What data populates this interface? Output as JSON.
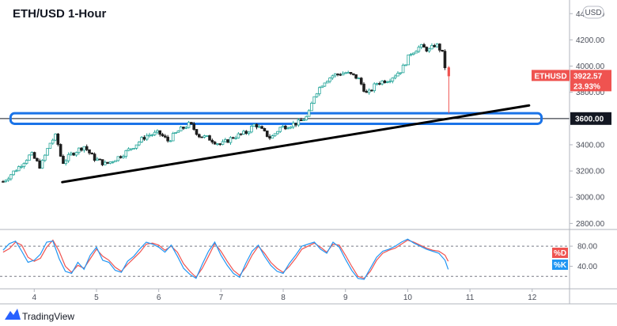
{
  "chart_data": [
    {
      "type": "candlestick",
      "title": "ETH/USD 1-Hour",
      "currency_label": "USD",
      "x_ticks": [
        "4",
        "5",
        "6",
        "7",
        "8",
        "9",
        "10",
        "11",
        "12"
      ],
      "x_range": [
        3.45,
        12.6
      ],
      "y_ticks": [
        2800,
        3000,
        3200,
        3400,
        3600,
        3800,
        4000,
        4200,
        4400
      ],
      "y_tick_labels": [
        "2800.00",
        "3000.00",
        "3200.00",
        "3400.00",
        "3600.00",
        "3800.00",
        "4000.00",
        "4200.00",
        "4400.00"
      ],
      "ylim": [
        2760,
        4480
      ],
      "up_color": "#26a69a",
      "down_color": "#1e1e1e",
      "price_path": [
        [
          3.5,
          3120
        ],
        [
          3.75,
          3230
        ],
        [
          3.95,
          3330
        ],
        [
          4.1,
          3230
        ],
        [
          4.25,
          3410
        ],
        [
          4.35,
          3470
        ],
        [
          4.45,
          3260
        ],
        [
          4.6,
          3330
        ],
        [
          4.8,
          3390
        ],
        [
          4.95,
          3300
        ],
        [
          5.15,
          3250
        ],
        [
          5.4,
          3320
        ],
        [
          5.6,
          3390
        ],
        [
          5.8,
          3470
        ],
        [
          6.0,
          3490
        ],
        [
          6.15,
          3430
        ],
        [
          6.3,
          3500
        ],
        [
          6.5,
          3560
        ],
        [
          6.65,
          3470
        ],
        [
          6.8,
          3450
        ],
        [
          7.0,
          3400
        ],
        [
          7.2,
          3460
        ],
        [
          7.4,
          3490
        ],
        [
          7.55,
          3560
        ],
        [
          7.7,
          3490
        ],
        [
          7.8,
          3450
        ],
        [
          7.95,
          3530
        ],
        [
          8.1,
          3550
        ],
        [
          8.25,
          3570
        ],
        [
          8.4,
          3620
        ],
        [
          8.5,
          3780
        ],
        [
          8.65,
          3880
        ],
        [
          8.8,
          3930
        ],
        [
          9.0,
          3950
        ],
        [
          9.2,
          3910
        ],
        [
          9.35,
          3780
        ],
        [
          9.5,
          3870
        ],
        [
          9.7,
          3900
        ],
        [
          9.9,
          3970
        ],
        [
          10.05,
          4100
        ],
        [
          10.2,
          4150
        ],
        [
          10.35,
          4120
        ],
        [
          10.45,
          4170
        ],
        [
          10.55,
          4110
        ],
        [
          10.6,
          3990
        ],
        [
          10.65,
          3922.57
        ]
      ],
      "last_candle": {
        "x": 10.66,
        "open": 3990,
        "high": 4000,
        "low": 3640,
        "close": 3922.57
      },
      "trendline": {
        "start": [
          4.45,
          3115
        ],
        "end": [
          11.95,
          3700
        ],
        "color": "#000000"
      },
      "support_zone": {
        "low": 3560,
        "high": 3640,
        "x_start": 3.62,
        "x_end": 12.15,
        "color": "#1a73e8"
      },
      "horizontal_line": {
        "price": 3600,
        "label": "3600.00"
      },
      "last_price_badge": {
        "symbol": "ETHUSD",
        "price": "3922.57",
        "change": "23.93%",
        "color": "#ef5350",
        "price_value": 3922.57
      }
    },
    {
      "type": "line",
      "indicator": "stochastic",
      "y_ticks": [
        40,
        80
      ],
      "y_tick_labels": [
        "40.00",
        "80.00"
      ],
      "ylim": [
        0,
        110
      ],
      "dashed_levels": [
        80,
        20
      ],
      "series": [
        {
          "name": "%D",
          "color": "#ef5350",
          "x": [
            3.5,
            3.6,
            3.7,
            3.8,
            3.9,
            4.0,
            4.1,
            4.2,
            4.3,
            4.4,
            4.5,
            4.6,
            4.7,
            4.8,
            4.9,
            5.0,
            5.1,
            5.2,
            5.3,
            5.4,
            5.5,
            5.6,
            5.7,
            5.8,
            5.9,
            6.0,
            6.1,
            6.2,
            6.3,
            6.4,
            6.5,
            6.6,
            6.7,
            6.8,
            6.9,
            7.0,
            7.1,
            7.2,
            7.3,
            7.4,
            7.5,
            7.6,
            7.7,
            7.8,
            7.9,
            8.0,
            8.1,
            8.2,
            8.3,
            8.4,
            8.5,
            8.6,
            8.7,
            8.8,
            8.9,
            9.0,
            9.1,
            9.2,
            9.3,
            9.4,
            9.5,
            9.6,
            9.7,
            9.8,
            9.9,
            10.0,
            10.1,
            10.2,
            10.3,
            10.4,
            10.5,
            10.6,
            10.65
          ],
          "values": [
            68,
            75,
            88,
            82,
            58,
            50,
            56,
            78,
            92,
            70,
            40,
            28,
            42,
            36,
            55,
            74,
            60,
            52,
            38,
            30,
            44,
            56,
            68,
            84,
            86,
            82,
            72,
            80,
            68,
            45,
            30,
            18,
            36,
            60,
            85,
            70,
            50,
            32,
            22,
            38,
            62,
            80,
            66,
            48,
            36,
            28,
            40,
            56,
            74,
            80,
            86,
            78,
            68,
            84,
            82,
            62,
            40,
            20,
            16,
            30,
            52,
            66,
            72,
            76,
            84,
            92,
            88,
            82,
            76,
            72,
            70,
            62,
            50
          ]
        },
        {
          "name": "%K",
          "color": "#2196f3",
          "x": [
            3.5,
            3.6,
            3.7,
            3.8,
            3.9,
            4.0,
            4.1,
            4.2,
            4.3,
            4.4,
            4.5,
            4.6,
            4.7,
            4.8,
            4.9,
            5.0,
            5.1,
            5.2,
            5.3,
            5.4,
            5.5,
            5.6,
            5.7,
            5.8,
            5.9,
            6.0,
            6.1,
            6.2,
            6.3,
            6.4,
            6.5,
            6.6,
            6.7,
            6.8,
            6.9,
            7.0,
            7.1,
            7.2,
            7.3,
            7.4,
            7.5,
            7.6,
            7.7,
            7.8,
            7.9,
            8.0,
            8.1,
            8.2,
            8.3,
            8.4,
            8.5,
            8.6,
            8.7,
            8.8,
            8.9,
            9.0,
            9.1,
            9.2,
            9.3,
            9.4,
            9.5,
            9.6,
            9.7,
            9.8,
            9.9,
            10.0,
            10.1,
            10.2,
            10.3,
            10.4,
            10.5,
            10.6,
            10.65
          ],
          "values": [
            72,
            85,
            90,
            70,
            48,
            52,
            64,
            88,
            90,
            55,
            30,
            26,
            48,
            34,
            62,
            78,
            52,
            48,
            32,
            28,
            50,
            60,
            75,
            88,
            84,
            78,
            68,
            82,
            60,
            36,
            24,
            16,
            44,
            70,
            88,
            62,
            42,
            26,
            18,
            46,
            70,
            82,
            60,
            42,
            30,
            26,
            46,
            62,
            80,
            84,
            88,
            74,
            66,
            88,
            78,
            54,
            32,
            16,
            14,
            36,
            58,
            70,
            74,
            80,
            88,
            94,
            86,
            80,
            74,
            70,
            66,
            52,
            34
          ]
        }
      ]
    }
  ],
  "branding": {
    "logo_text": "TradingView"
  }
}
